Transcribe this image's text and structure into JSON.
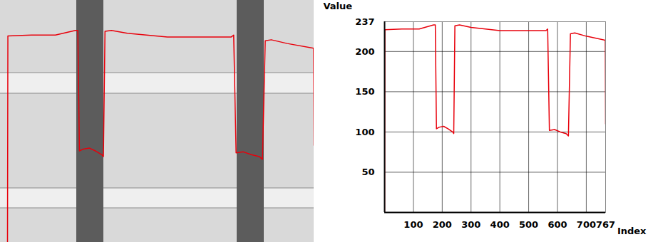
{
  "chart_data": {
    "type": "line",
    "x_label": "Index",
    "y_label": "Value",
    "x": [
      0,
      1,
      60,
      120,
      170,
      176,
      180,
      190,
      205,
      220,
      236,
      240,
      244,
      260,
      300,
      400,
      500,
      560,
      566,
      572,
      590,
      610,
      630,
      638,
      645,
      660,
      700,
      766,
      767
    ],
    "values": [
      0,
      227,
      228,
      228,
      233,
      233,
      104,
      106,
      107,
      104,
      100,
      98,
      232,
      233,
      230,
      226,
      226,
      226,
      228,
      102,
      103,
      100,
      98,
      95,
      222,
      223,
      219,
      214,
      110
    ],
    "color": "#e8000b",
    "xlim": [
      0,
      767
    ],
    "xticks": [
      100,
      200,
      300,
      400,
      500,
      600,
      700,
      767
    ],
    "ylim": [
      0,
      237
    ],
    "yticks": [
      50,
      100,
      150,
      200,
      237
    ],
    "grid": true
  }
}
